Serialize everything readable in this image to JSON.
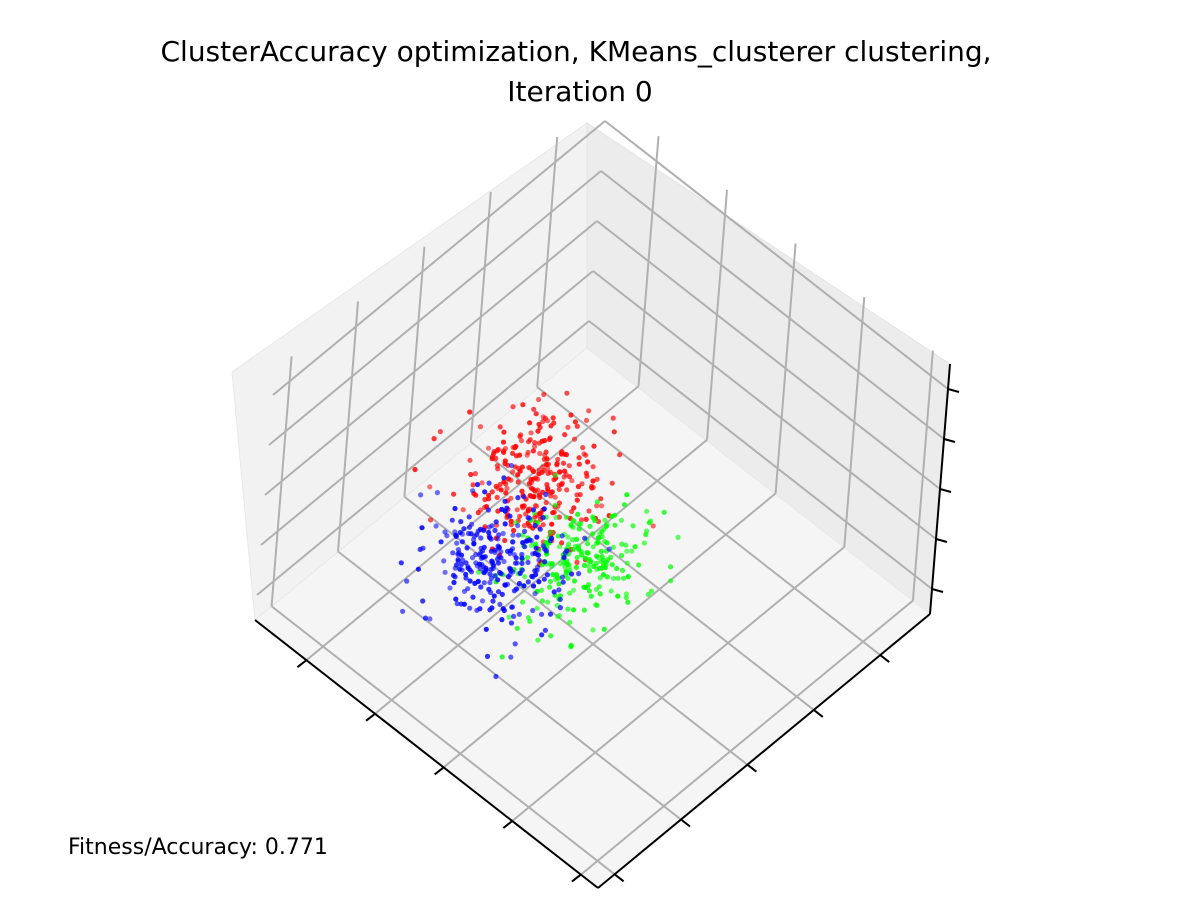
{
  "chart_data": {
    "type": "scatter",
    "title": "ClusterAccuracy optimization, KMeans_clusterer clustering,",
    "subtitle": "Iteration 0",
    "annotation": "Fitness/Accuracy: 0.771",
    "projection": "3d",
    "grid": true,
    "tick_labels_shown": false,
    "xlim": [
      0,
      1
    ],
    "ylim": [
      0,
      1
    ],
    "zlim": [
      0,
      1
    ],
    "series": [
      {
        "color": "#ff0000",
        "center": [
          0.62,
          0.42,
          0.5
        ],
        "spread": [
          0.075,
          0.075,
          0.06
        ],
        "count": 280
      },
      {
        "color": "#00ff00",
        "center": [
          0.4,
          0.33,
          0.52
        ],
        "spread": [
          0.075,
          0.075,
          0.06
        ],
        "count": 230
      },
      {
        "color": "#0000ff",
        "center": [
          0.55,
          0.23,
          0.46
        ],
        "spread": [
          0.075,
          0.075,
          0.06
        ],
        "count": 270
      }
    ]
  }
}
